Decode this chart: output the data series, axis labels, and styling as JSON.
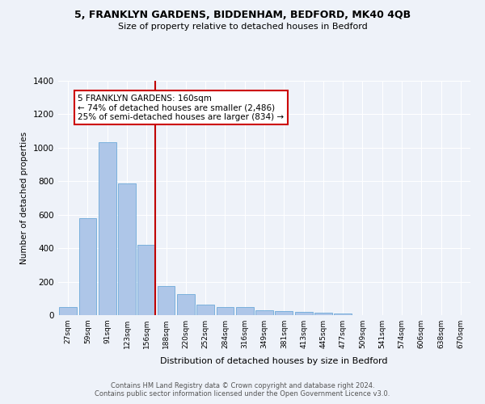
{
  "title1": "5, FRANKLYN GARDENS, BIDDENHAM, BEDFORD, MK40 4QB",
  "title2": "Size of property relative to detached houses in Bedford",
  "xlabel": "Distribution of detached houses by size in Bedford",
  "ylabel": "Number of detached properties",
  "annotation_line1": "5 FRANKLYN GARDENS: 160sqm",
  "annotation_line2": "← 74% of detached houses are smaller (2,486)",
  "annotation_line3": "25% of semi-detached houses are larger (834) →",
  "footer_line1": "Contains HM Land Registry data © Crown copyright and database right 2024.",
  "footer_line2": "Contains public sector information licensed under the Open Government Licence v3.0.",
  "categories": [
    "27sqm",
    "59sqm",
    "91sqm",
    "123sqm",
    "156sqm",
    "188sqm",
    "220sqm",
    "252sqm",
    "284sqm",
    "316sqm",
    "349sqm",
    "381sqm",
    "413sqm",
    "445sqm",
    "477sqm",
    "509sqm",
    "541sqm",
    "574sqm",
    "606sqm",
    "638sqm",
    "670sqm"
  ],
  "values": [
    47,
    578,
    1035,
    787,
    422,
    175,
    125,
    62,
    47,
    48,
    27,
    25,
    17,
    13,
    12,
    0,
    0,
    0,
    0,
    0,
    0
  ],
  "bar_color": "#aec6e8",
  "bar_edge_color": "#5a9fd4",
  "highlight_index": 4,
  "highlight_color": "#c00000",
  "ylim": [
    0,
    1400
  ],
  "yticks": [
    0,
    200,
    400,
    600,
    800,
    1000,
    1200,
    1400
  ],
  "bg_color": "#eef2f9",
  "grid_color": "#ffffff",
  "annotation_box_color": "#ffffff",
  "annotation_box_edge_color": "#cc0000"
}
